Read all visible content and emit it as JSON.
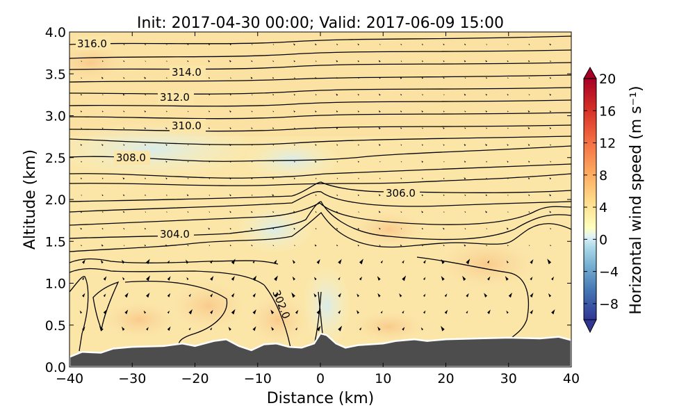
{
  "chart_data": {
    "type": "heatmap",
    "title": "Init: 2017-04-30 00:00; Valid: 2017-06-09 15:00",
    "xlabel": "Distance (km)",
    "ylabel": "Altitude (km)",
    "xlim": [
      -40,
      40
    ],
    "ylim": [
      0.0,
      4.0
    ],
    "xticks": [
      "−40",
      "−30",
      "−20",
      "−10",
      "0",
      "10",
      "20",
      "30",
      "40"
    ],
    "yticks": [
      "0.0",
      "0.5",
      "1.0",
      "1.5",
      "2.0",
      "2.5",
      "3.0",
      "3.5",
      "4.0"
    ],
    "colorbar": {
      "label": "Horizontal wind speed (m s⁻¹)",
      "range": [
        -10,
        20
      ],
      "extend": "both",
      "ticks": [
        "−8",
        "−4",
        "0",
        "4",
        "8",
        "12",
        "16",
        "20"
      ],
      "colormap": "RdYlBu_r"
    },
    "contour_labels": [
      "316.0",
      "314.0",
      "312.0",
      "310.0",
      "308.0",
      "306.0",
      "304.0",
      "302.0"
    ],
    "theta_contours_K": [
      316.0,
      314.0,
      312.0,
      310.0,
      308.0,
      306.0,
      304.0,
      302.0
    ],
    "terrain": [
      {
        "x": -40,
        "z": 0.12
      },
      {
        "x": -38,
        "z": 0.18
      },
      {
        "x": -35,
        "z": 0.17
      },
      {
        "x": -33,
        "z": 0.22
      },
      {
        "x": -30,
        "z": 0.24
      },
      {
        "x": -25,
        "z": 0.25
      },
      {
        "x": -22,
        "z": 0.28
      },
      {
        "x": -20,
        "z": 0.25
      },
      {
        "x": -17,
        "z": 0.31
      },
      {
        "x": -15,
        "z": 0.33
      },
      {
        "x": -13,
        "z": 0.25
      },
      {
        "x": -11,
        "z": 0.2
      },
      {
        "x": -9,
        "z": 0.27
      },
      {
        "x": -7,
        "z": 0.28
      },
      {
        "x": -5,
        "z": 0.24
      },
      {
        "x": -3,
        "z": 0.23
      },
      {
        "x": -1,
        "z": 0.28
      },
      {
        "x": 0,
        "z": 0.4
      },
      {
        "x": 1,
        "z": 0.38
      },
      {
        "x": 2.5,
        "z": 0.28
      },
      {
        "x": 4,
        "z": 0.23
      },
      {
        "x": 6,
        "z": 0.26
      },
      {
        "x": 10,
        "z": 0.28
      },
      {
        "x": 12,
        "z": 0.31
      },
      {
        "x": 15,
        "z": 0.33
      },
      {
        "x": 17,
        "z": 0.31
      },
      {
        "x": 20,
        "z": 0.33
      },
      {
        "x": 25,
        "z": 0.34
      },
      {
        "x": 30,
        "z": 0.35
      },
      {
        "x": 35,
        "z": 0.34
      },
      {
        "x": 38,
        "z": 0.36
      },
      {
        "x": 40,
        "z": 0.32
      }
    ],
    "grid": false,
    "legend": "colorbar-right"
  }
}
